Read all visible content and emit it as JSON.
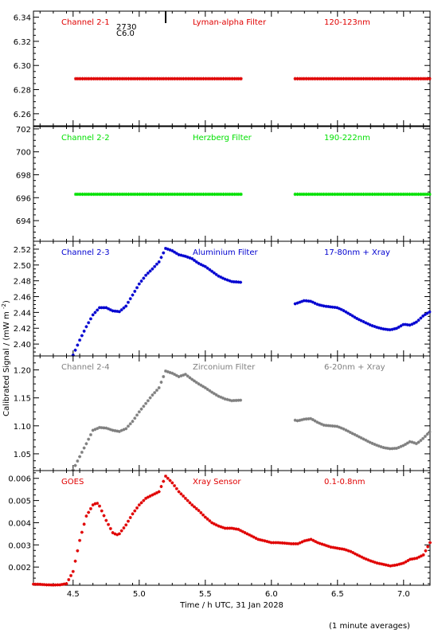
{
  "chart_data": {
    "type": "scatter",
    "x_range": [
      4.2,
      7.2
    ],
    "x_ticks": [
      "4.5",
      "5.0",
      "5.5",
      "6.0",
      "6.5",
      "7.0"
    ],
    "x_tick_values": [
      4.5,
      5.0,
      5.5,
      6.0,
      6.5,
      7.0
    ],
    "xlabel": "Time / h UTC, 31 Jan 2028",
    "ylabel": "Calibrated Signal / (mW m",
    "ylabel_sup": "-2",
    "ylabel_close": ")",
    "footnote": "(1 minute averages)",
    "flare_marker": {
      "time": 5.2,
      "class_label": "C6.0",
      "id_label": "2730"
    },
    "panels": [
      {
        "name": "Channel 2-1",
        "filter": "Lyman-alpha Filter",
        "band": "120-123nm",
        "color": "#e00000",
        "ylim": [
          6.25,
          6.345
        ],
        "y_ticks": [
          "6.26",
          "6.28",
          "6.30",
          "6.32",
          "6.34"
        ],
        "y_tick_values": [
          6.26,
          6.28,
          6.3,
          6.32,
          6.34
        ],
        "segments": [
          {
            "x": [
              4.52,
              5.78
            ],
            "y": [
              6.289,
              6.289
            ]
          },
          {
            "x": [
              6.18,
              7.2
            ],
            "y": [
              6.289,
              6.289
            ]
          }
        ]
      },
      {
        "name": "Channel 2-2",
        "filter": "Herzberg Filter",
        "band": "190-222nm",
        "color": "#00e000",
        "ylim": [
          692.2,
          702.2
        ],
        "y_ticks": [
          "694",
          "696",
          "698",
          "700",
          "702"
        ],
        "y_tick_values": [
          694,
          696,
          698,
          700,
          702
        ],
        "segments": [
          {
            "x": [
              4.52,
              5.78
            ],
            "y": [
              696.3,
              696.3
            ]
          },
          {
            "x": [
              6.18,
              7.2
            ],
            "y": [
              696.3,
              696.3
            ]
          }
        ]
      },
      {
        "name": "Channel 2-3",
        "filter": "Aluminium Filter",
        "band": "17-80nm + Xray",
        "color": "#0000d0",
        "ylim": [
          2.385,
          2.53
        ],
        "y_ticks": [
          "2.40",
          "2.42",
          "2.44",
          "2.46",
          "2.48",
          "2.50",
          "2.52"
        ],
        "y_tick_values": [
          2.4,
          2.42,
          2.44,
          2.46,
          2.48,
          2.5,
          2.52
        ],
        "segments": [
          {
            "x": [
              4.5,
              4.55,
              4.6,
              4.65,
              4.7,
              4.75,
              4.8,
              4.85,
              4.9,
              4.95,
              5.0,
              5.05,
              5.1,
              5.15,
              5.2,
              5.25,
              5.3,
              5.35,
              5.4,
              5.45,
              5.5,
              5.55,
              5.6,
              5.65,
              5.7,
              5.78
            ],
            "y": [
              2.386,
              2.405,
              2.422,
              2.437,
              2.446,
              2.446,
              2.442,
              2.441,
              2.448,
              2.462,
              2.476,
              2.487,
              2.495,
              2.504,
              2.521,
              2.518,
              2.513,
              2.511,
              2.508,
              2.502,
              2.498,
              2.492,
              2.486,
              2.482,
              2.479,
              2.478
            ]
          },
          {
            "x": [
              6.18,
              6.2,
              6.25,
              6.3,
              6.35,
              6.4,
              6.45,
              6.5,
              6.55,
              6.6,
              6.65,
              6.7,
              6.75,
              6.8,
              6.85,
              6.9,
              6.95,
              7.0,
              7.05,
              7.1,
              7.15,
              7.2
            ],
            "y": [
              2.451,
              2.452,
              2.455,
              2.454,
              2.45,
              2.448,
              2.447,
              2.446,
              2.442,
              2.437,
              2.432,
              2.428,
              2.424,
              2.421,
              2.419,
              2.418,
              2.42,
              2.425,
              2.424,
              2.428,
              2.436,
              2.441
            ]
          }
        ]
      },
      {
        "name": "Channel 2-4",
        "filter": "Zirconium Filter",
        "band": "6-20nm + Xray",
        "color": "#7f7f7f",
        "ylim": [
          1.02,
          1.225
        ],
        "y_ticks": [
          "1.05",
          "1.10",
          "1.15",
          "1.20"
        ],
        "y_tick_values": [
          1.05,
          1.1,
          1.15,
          1.2
        ],
        "segments": [
          {
            "x": [
              4.5,
              4.55,
              4.6,
              4.65,
              4.7,
              4.75,
              4.8,
              4.85,
              4.9,
              4.95,
              5.0,
              5.05,
              5.1,
              5.15,
              5.2,
              5.25,
              5.3,
              5.35,
              5.4,
              5.45,
              5.5,
              5.55,
              5.6,
              5.65,
              5.7,
              5.78
            ],
            "y": [
              1.021,
              1.045,
              1.068,
              1.092,
              1.097,
              1.096,
              1.092,
              1.09,
              1.095,
              1.108,
              1.125,
              1.14,
              1.155,
              1.168,
              1.198,
              1.194,
              1.188,
              1.192,
              1.183,
              1.175,
              1.168,
              1.16,
              1.153,
              1.148,
              1.145,
              1.146
            ]
          },
          {
            "x": [
              6.18,
              6.2,
              6.25,
              6.3,
              6.35,
              6.4,
              6.45,
              6.5,
              6.55,
              6.6,
              6.65,
              6.7,
              6.75,
              6.8,
              6.85,
              6.9,
              6.95,
              7.0,
              7.05,
              7.1,
              7.15,
              7.2
            ],
            "y": [
              1.11,
              1.109,
              1.112,
              1.113,
              1.106,
              1.101,
              1.1,
              1.099,
              1.094,
              1.088,
              1.082,
              1.076,
              1.07,
              1.065,
              1.061,
              1.059,
              1.06,
              1.065,
              1.072,
              1.068,
              1.078,
              1.09
            ]
          }
        ]
      },
      {
        "name": "GOES",
        "filter": "Xray Sensor",
        "band": "0.1-0.8nm",
        "color": "#e00000",
        "ylim": [
          0.00118,
          0.00635
        ],
        "y_ticks": [
          "0.002",
          "0.003",
          "0.004",
          "0.005",
          "0.006"
        ],
        "y_tick_values": [
          0.002,
          0.003,
          0.004,
          0.005,
          0.006
        ],
        "segments": [
          {
            "x": [
              4.2,
              4.25,
              4.3,
              4.35,
              4.4,
              4.45,
              4.5,
              4.55,
              4.6,
              4.65,
              4.68,
              4.7,
              4.75,
              4.8,
              4.83,
              4.85,
              4.9,
              4.95,
              5.0,
              5.05,
              5.1,
              5.15,
              5.2,
              5.25,
              5.3,
              5.35,
              5.4,
              5.45,
              5.5,
              5.55,
              5.6,
              5.65,
              5.7,
              5.75,
              5.8,
              5.85,
              5.9,
              5.95,
              6.0,
              6.05,
              6.1,
              6.15,
              6.2,
              6.25,
              6.3,
              6.35,
              6.4,
              6.45,
              6.5,
              6.55,
              6.6,
              6.65,
              6.7,
              6.75,
              6.8,
              6.85,
              6.9,
              6.95,
              7.0,
              7.05,
              7.1,
              7.15,
              7.2
            ],
            "y": [
              0.00123,
              0.00122,
              0.0012,
              0.00119,
              0.0012,
              0.00125,
              0.0018,
              0.0032,
              0.0043,
              0.0048,
              0.0049,
              0.00475,
              0.0041,
              0.00355,
              0.00345,
              0.0035,
              0.0039,
              0.0044,
              0.0048,
              0.0051,
              0.00525,
              0.0054,
              0.0061,
              0.0058,
              0.0054,
              0.0051,
              0.0048,
              0.00455,
              0.00425,
              0.004,
              0.00385,
              0.00375,
              0.00375,
              0.0037,
              0.00355,
              0.0034,
              0.00325,
              0.00318,
              0.0031,
              0.0031,
              0.00308,
              0.00305,
              0.00305,
              0.00318,
              0.00325,
              0.0031,
              0.003,
              0.0029,
              0.00285,
              0.0028,
              0.0027,
              0.00255,
              0.0024,
              0.00228,
              0.00218,
              0.00212,
              0.00205,
              0.0021,
              0.00218,
              0.00235,
              0.0024,
              0.00255,
              0.0031
            ]
          }
        ]
      }
    ]
  }
}
